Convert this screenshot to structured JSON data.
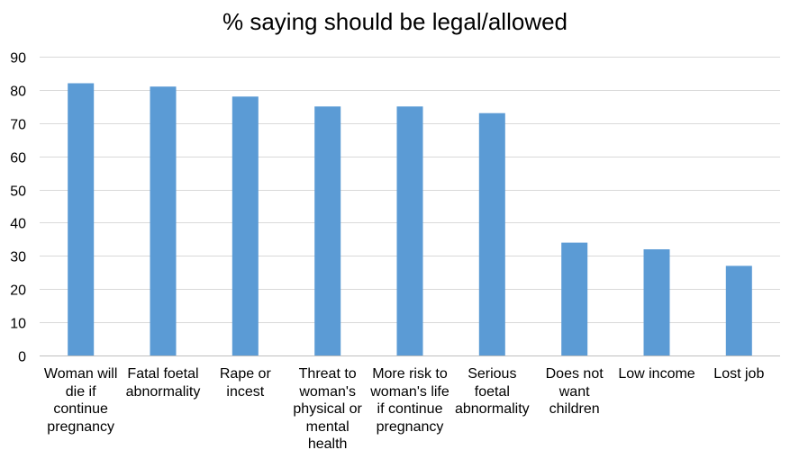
{
  "chart_data": {
    "type": "bar",
    "title": "% saying should be legal/allowed",
    "xlabel": "",
    "ylabel": "",
    "categories": [
      "Woman will die if continue pregnancy",
      "Fatal foetal abnormality",
      "Rape or incest",
      "Threat to woman's physical or mental health",
      "More risk to woman's life if continue pregnancy",
      "Serious foetal abnormality",
      "Does not want children",
      "Low income",
      "Lost job"
    ],
    "values": [
      82,
      81,
      78,
      75,
      75,
      73,
      34,
      32,
      27
    ],
    "ylim": [
      0,
      90
    ],
    "yticks": [
      0,
      10,
      20,
      30,
      40,
      50,
      60,
      70,
      80,
      90
    ],
    "grid": true,
    "legend": "none",
    "colors": {
      "bar": "#5B9BD5",
      "grid": "#D9D9D9",
      "axis": "#BFBFBF",
      "text": "#000000"
    }
  }
}
